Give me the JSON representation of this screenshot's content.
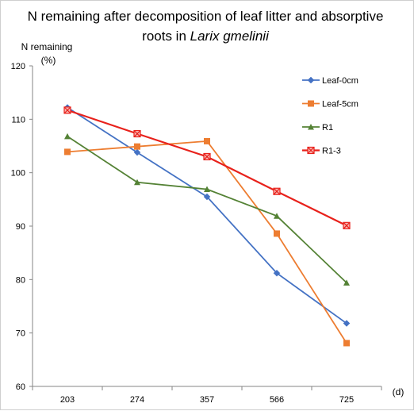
{
  "chart_data": {
    "type": "line",
    "title_line1": "N remaining after decomposition of leaf litter and absorptive",
    "title_line2_prefix": "roots in ",
    "title_line2_italic": "Larix gmelinii",
    "ylabel_line1": "N remaining",
    "ylabel_line2": "(%)",
    "xlabel": "(d)",
    "categories": [
      "203",
      "274",
      "357",
      "566",
      "725"
    ],
    "ylim": [
      60,
      120
    ],
    "yticks": [
      60,
      70,
      80,
      90,
      100,
      110,
      120
    ],
    "grid": false,
    "legend_position": "top-right",
    "series": [
      {
        "name": "Leaf-0cm",
        "color": "#4472C4",
        "marker": "diamond",
        "values": [
          112.2,
          103.8,
          95.5,
          81.2,
          71.8
        ]
      },
      {
        "name": "Leaf-5cm",
        "color": "#ED7D31",
        "marker": "square",
        "values": [
          103.9,
          104.9,
          105.9,
          88.6,
          68.1
        ]
      },
      {
        "name": "R1",
        "color": "#548235",
        "marker": "triangle",
        "values": [
          106.8,
          98.2,
          96.9,
          91.9,
          79.4
        ]
      },
      {
        "name": "R1-3",
        "color": "#E8211B",
        "marker": "x-square",
        "values": [
          111.7,
          107.3,
          103.0,
          96.5,
          90.1
        ]
      }
    ]
  }
}
